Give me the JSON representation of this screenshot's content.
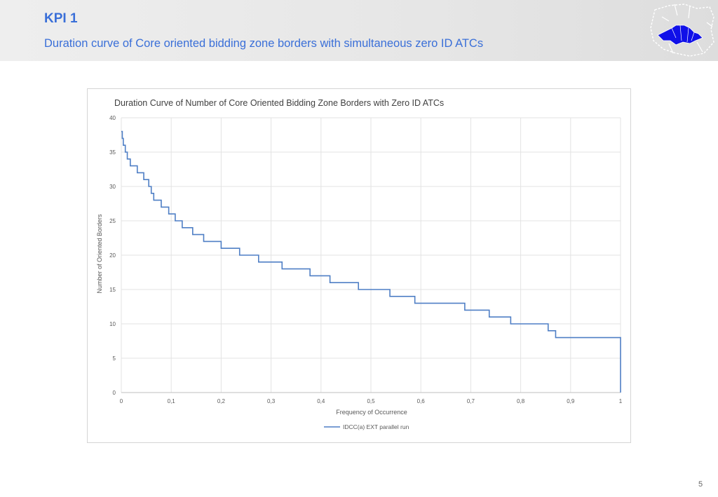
{
  "header": {
    "title": "KPI 1",
    "subtitle": "Duration curve of Core oriented bidding zone borders with simultaneous zero ID ATCs",
    "logo_icon": "europe-map-icon"
  },
  "page": {
    "number": "5"
  },
  "colors": {
    "accent": "#3a6fd8",
    "series": "#4f7fc5",
    "grid": "#e3e3e3",
    "logo_fill": "#1010e8"
  },
  "chart_data": {
    "type": "line",
    "title": "Duration Curve  of Number of Core Oriented Bidding Zone Borders with Zero ID ATCs",
    "xlabel": "Frequency of Occurrence",
    "ylabel": "Number of Oriented Borders",
    "xlim": [
      0,
      1
    ],
    "ylim": [
      0,
      40
    ],
    "x_ticks": [
      "0",
      "0,1",
      "0,2",
      "0,3",
      "0,4",
      "0,5",
      "0,6",
      "0,7",
      "0,8",
      "0,9",
      "1"
    ],
    "y_ticks": [
      "0",
      "5",
      "10",
      "15",
      "20",
      "25",
      "30",
      "35",
      "40"
    ],
    "grid": true,
    "legend_position": "bottom",
    "series": [
      {
        "name": "IDCC(a) EXT parallel run",
        "step": true,
        "x": [
          0,
          0.002,
          0.004,
          0.008,
          0.012,
          0.018,
          0.032,
          0.045,
          0.055,
          0.06,
          0.065,
          0.08,
          0.095,
          0.108,
          0.122,
          0.143,
          0.165,
          0.2,
          0.237,
          0.275,
          0.322,
          0.378,
          0.418,
          0.475,
          0.538,
          0.588,
          0.688,
          0.737,
          0.78,
          0.855,
          0.87,
          1,
          1
        ],
        "y": [
          38,
          37,
          36,
          35,
          34,
          33,
          32,
          31,
          30,
          29,
          28,
          27,
          26,
          25,
          24,
          23,
          22,
          21,
          20,
          19,
          18,
          17,
          16,
          15,
          14,
          13,
          12,
          11,
          10,
          9,
          8,
          8,
          0
        ]
      }
    ]
  }
}
